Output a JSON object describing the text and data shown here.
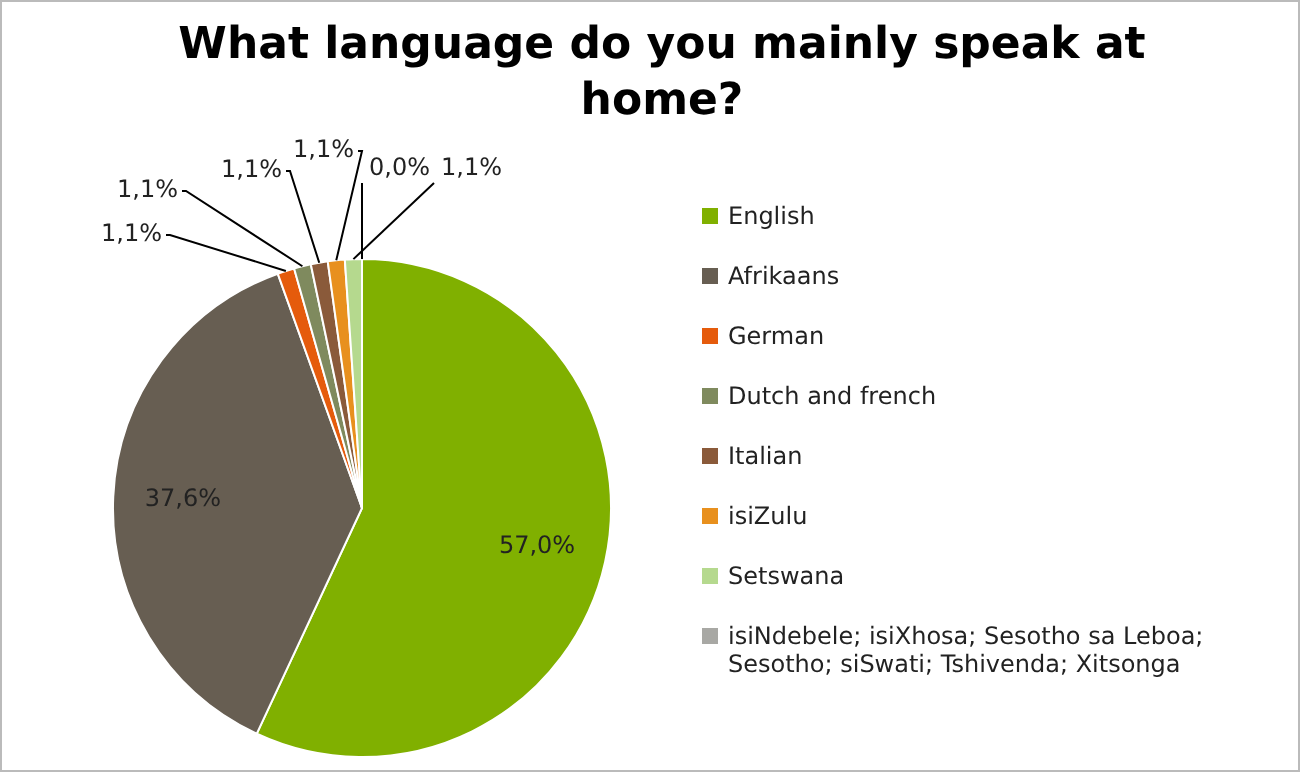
{
  "chart_data": {
    "type": "pie",
    "title": "What language do you mainly speak at home?",
    "categories": [
      "English",
      "Afrikaans",
      "German",
      "Dutch and french",
      "Italian",
      "isiZulu",
      "Setswana",
      "isiNdebele; isiXhosa; Sesotho sa Leboa; Sesotho; siSwati; Tshivenda; Xitsonga"
    ],
    "values": [
      57.0,
      37.6,
      1.1,
      1.1,
      1.1,
      1.1,
      1.1,
      0.0
    ],
    "colors": [
      "#80b000",
      "#675e52",
      "#e55b0c",
      "#7f8a5e",
      "#8a5a3a",
      "#e8901e",
      "#b5d98e",
      "#a8a8a4"
    ],
    "value_labels": [
      "57,0%",
      "37,6%",
      "1,1%",
      "1,1%",
      "1,1%",
      "1,1%",
      "1,1%",
      "0,0%"
    ],
    "legend": "right"
  }
}
